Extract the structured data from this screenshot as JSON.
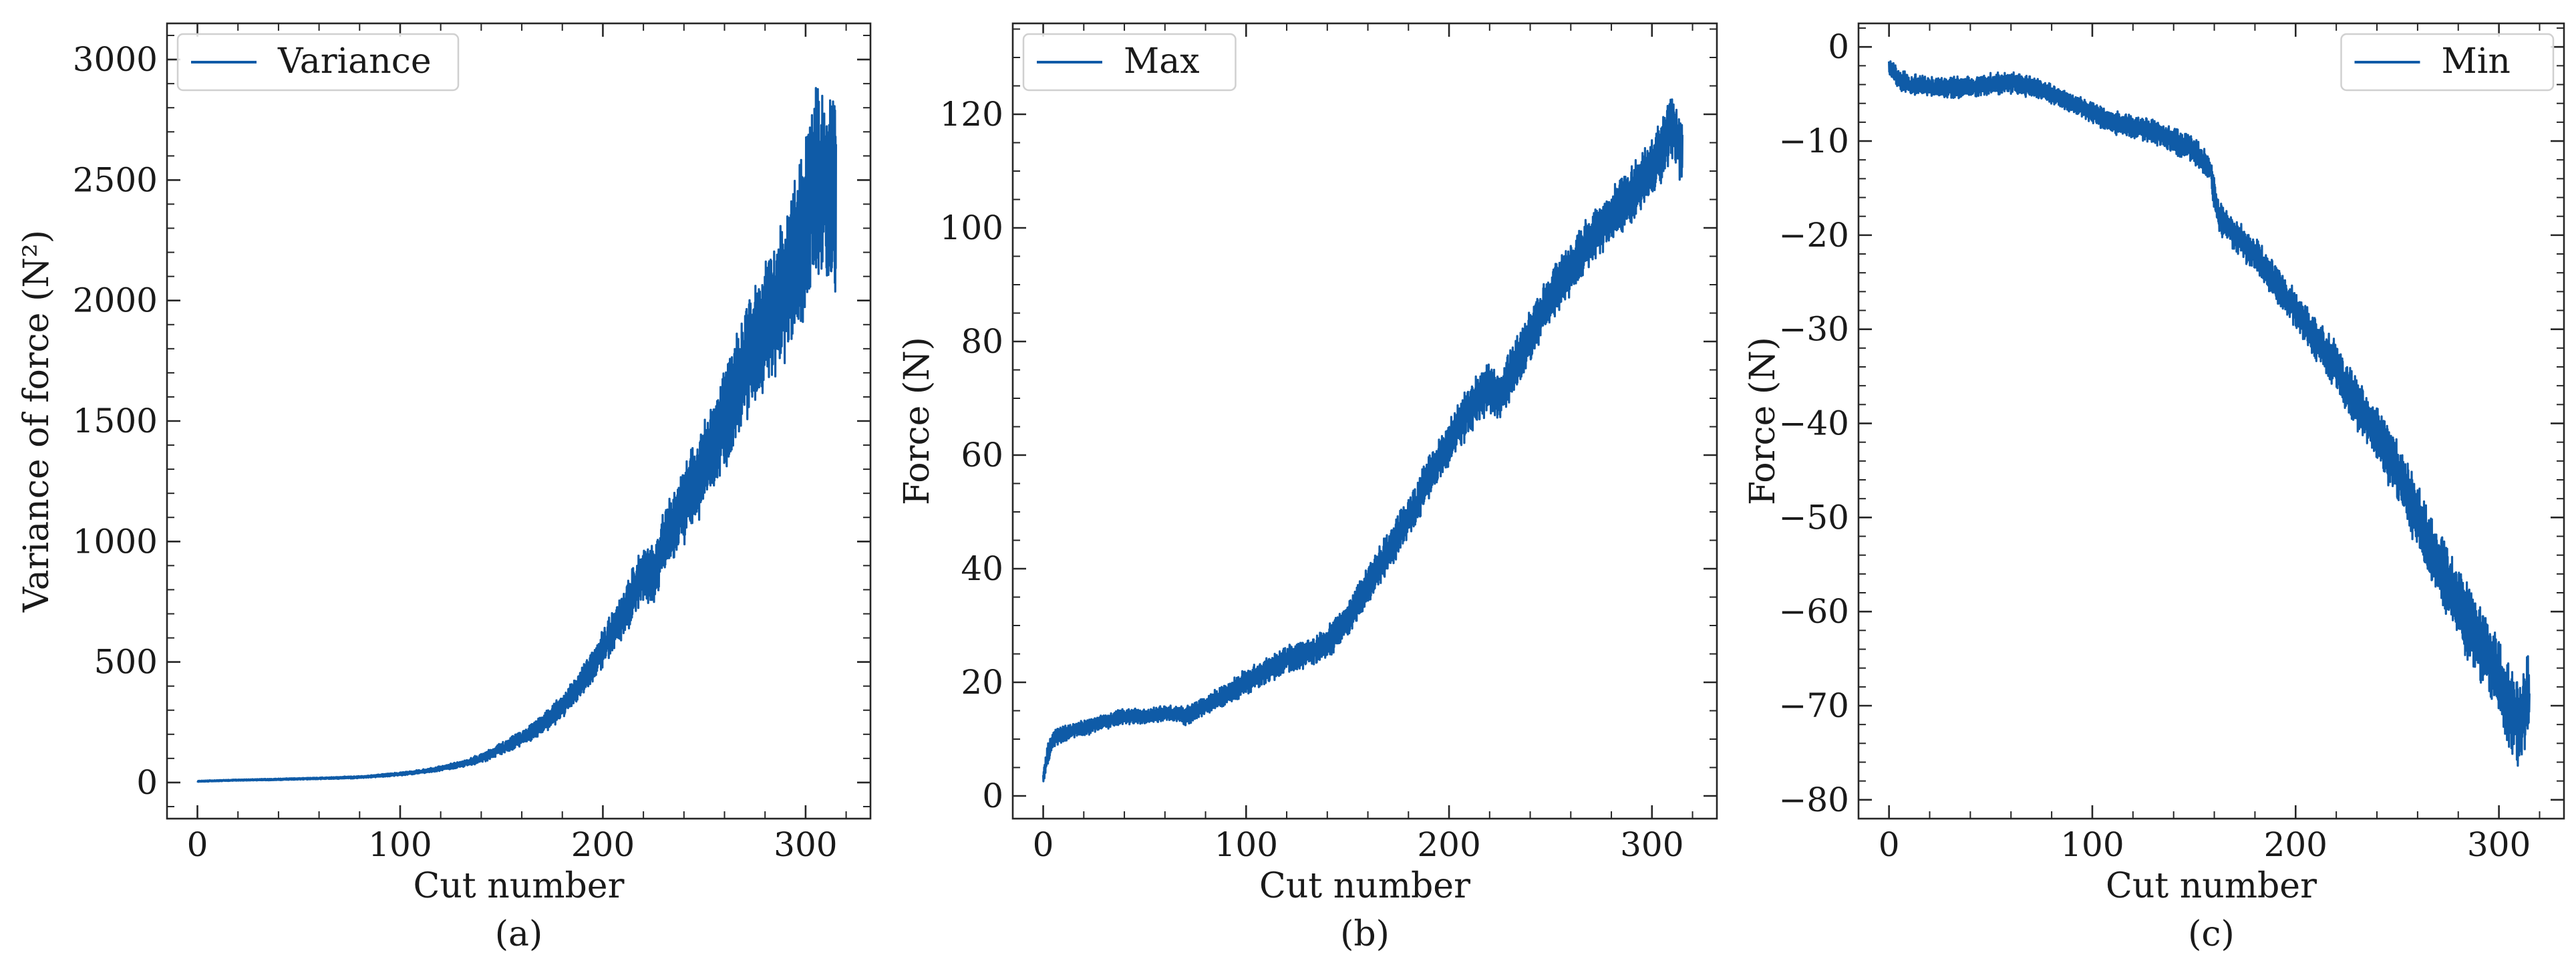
{
  "figure": {
    "line_color": "#0f5ba7",
    "frame_color": "#262626"
  },
  "chart_data": [
    {
      "type": "line",
      "caption": "(a)",
      "xlabel": "Cut number",
      "ylabel": "Variance of force (N²)",
      "legend": {
        "label": "Variance",
        "placement": "top-left"
      },
      "xlim": [
        -15,
        332
      ],
      "ylim": [
        -150,
        3150
      ],
      "xticks": [
        0,
        100,
        200,
        300
      ],
      "yticks": [
        0,
        500,
        1000,
        1500,
        2000,
        2500,
        3000
      ],
      "xminor": 20,
      "yminor": 100,
      "series": [
        {
          "name": "Variance",
          "x": [
            0,
            20,
            40,
            60,
            80,
            100,
            110,
            120,
            130,
            140,
            150,
            160,
            170,
            180,
            190,
            200,
            210,
            220,
            225,
            230,
            240,
            250,
            260,
            270,
            280,
            290,
            300,
            305,
            310,
            315
          ],
          "y": [
            5,
            10,
            13,
            17,
            22,
            35,
            45,
            58,
            75,
            100,
            140,
            185,
            240,
            315,
            420,
            560,
            700,
            870,
            850,
            1000,
            1150,
            1320,
            1500,
            1720,
            1900,
            2050,
            2300,
            2500,
            2500,
            2450
          ],
          "noise": [
            2,
            2,
            3,
            3,
            4,
            6,
            7,
            9,
            12,
            16,
            22,
            28,
            35,
            45,
            55,
            70,
            85,
            110,
            110,
            120,
            140,
            170,
            190,
            210,
            240,
            260,
            320,
            360,
            380,
            380
          ]
        }
      ]
    },
    {
      "type": "line",
      "caption": "(b)",
      "xlabel": "Cut number",
      "ylabel": "Force (N)",
      "legend": {
        "label": "Max",
        "placement": "top-left"
      },
      "xlim": [
        -15,
        332
      ],
      "ylim": [
        -4,
        136
      ],
      "xticks": [
        0,
        100,
        200,
        300
      ],
      "yticks": [
        0,
        20,
        40,
        60,
        80,
        100,
        120
      ],
      "xminor": 20,
      "yminor": 5,
      "series": [
        {
          "name": "Max",
          "x": [
            0,
            2,
            5,
            10,
            20,
            30,
            40,
            50,
            60,
            65,
            70,
            80,
            90,
            100,
            110,
            120,
            130,
            140,
            150,
            160,
            170,
            180,
            190,
            200,
            210,
            220,
            225,
            230,
            240,
            250,
            260,
            270,
            280,
            290,
            300,
            305,
            310,
            315
          ],
          "y": [
            3,
            7,
            10,
            11,
            12,
            13,
            14,
            14,
            14.5,
            14.5,
            14,
            16,
            18,
            20,
            22,
            24,
            25,
            27,
            31,
            37,
            43,
            49,
            56,
            62,
            68,
            72,
            70,
            74,
            81,
            88,
            93,
            98,
            102,
            106,
            110,
            114,
            118,
            113
          ],
          "noise": [
            1,
            1.5,
            1.5,
            1.2,
            1.2,
            1.2,
            1.2,
            1.2,
            1.2,
            1.2,
            1.5,
            1.5,
            1.8,
            2,
            2,
            2,
            2.2,
            2.5,
            2.8,
            3,
            3,
            3.2,
            3.3,
            3.5,
            3.8,
            4,
            4,
            4,
            4,
            4,
            4,
            4,
            4,
            4.5,
            4.5,
            5,
            5,
            5
          ]
        }
      ]
    },
    {
      "type": "line",
      "caption": "(c)",
      "xlabel": "Cut number",
      "ylabel": "Force (N)",
      "legend": {
        "label": "Min",
        "placement": "top-right"
      },
      "xlim": [
        -15,
        332
      ],
      "ylim": [
        -82,
        2.5
      ],
      "xticks": [
        0,
        100,
        200,
        300
      ],
      "yticks": [
        0,
        -10,
        -20,
        -30,
        -40,
        -50,
        -60,
        -70,
        -80
      ],
      "xminor": 20,
      "yminor": 2,
      "series": [
        {
          "name": "Min",
          "x": [
            0,
            5,
            10,
            20,
            30,
            40,
            50,
            60,
            70,
            80,
            90,
            100,
            110,
            120,
            130,
            140,
            150,
            158,
            162,
            170,
            180,
            190,
            200,
            210,
            220,
            230,
            240,
            250,
            260,
            270,
            280,
            290,
            300,
            305,
            310,
            315
          ],
          "y": [
            -2,
            -3.5,
            -4,
            -4.2,
            -4.3,
            -4.3,
            -4,
            -3.8,
            -4.2,
            -5,
            -6,
            -7,
            -8,
            -8.5,
            -9,
            -10,
            -11,
            -13,
            -18,
            -20,
            -22,
            -25,
            -28,
            -31,
            -34,
            -38,
            -41,
            -45,
            -50,
            -55,
            -59,
            -63,
            -67,
            -70,
            -72,
            -69
          ],
          "noise": [
            0.8,
            1,
            1,
            1,
            1,
            1,
            1,
            1,
            1,
            1,
            1,
            1,
            1.1,
            1.1,
            1.2,
            1.2,
            1.3,
            1.4,
            1.5,
            1.5,
            1.6,
            1.7,
            1.8,
            2,
            2.2,
            2.4,
            2.6,
            2.8,
            3,
            3.2,
            3.4,
            3.6,
            3.8,
            4,
            4,
            4
          ]
        }
      ]
    }
  ]
}
